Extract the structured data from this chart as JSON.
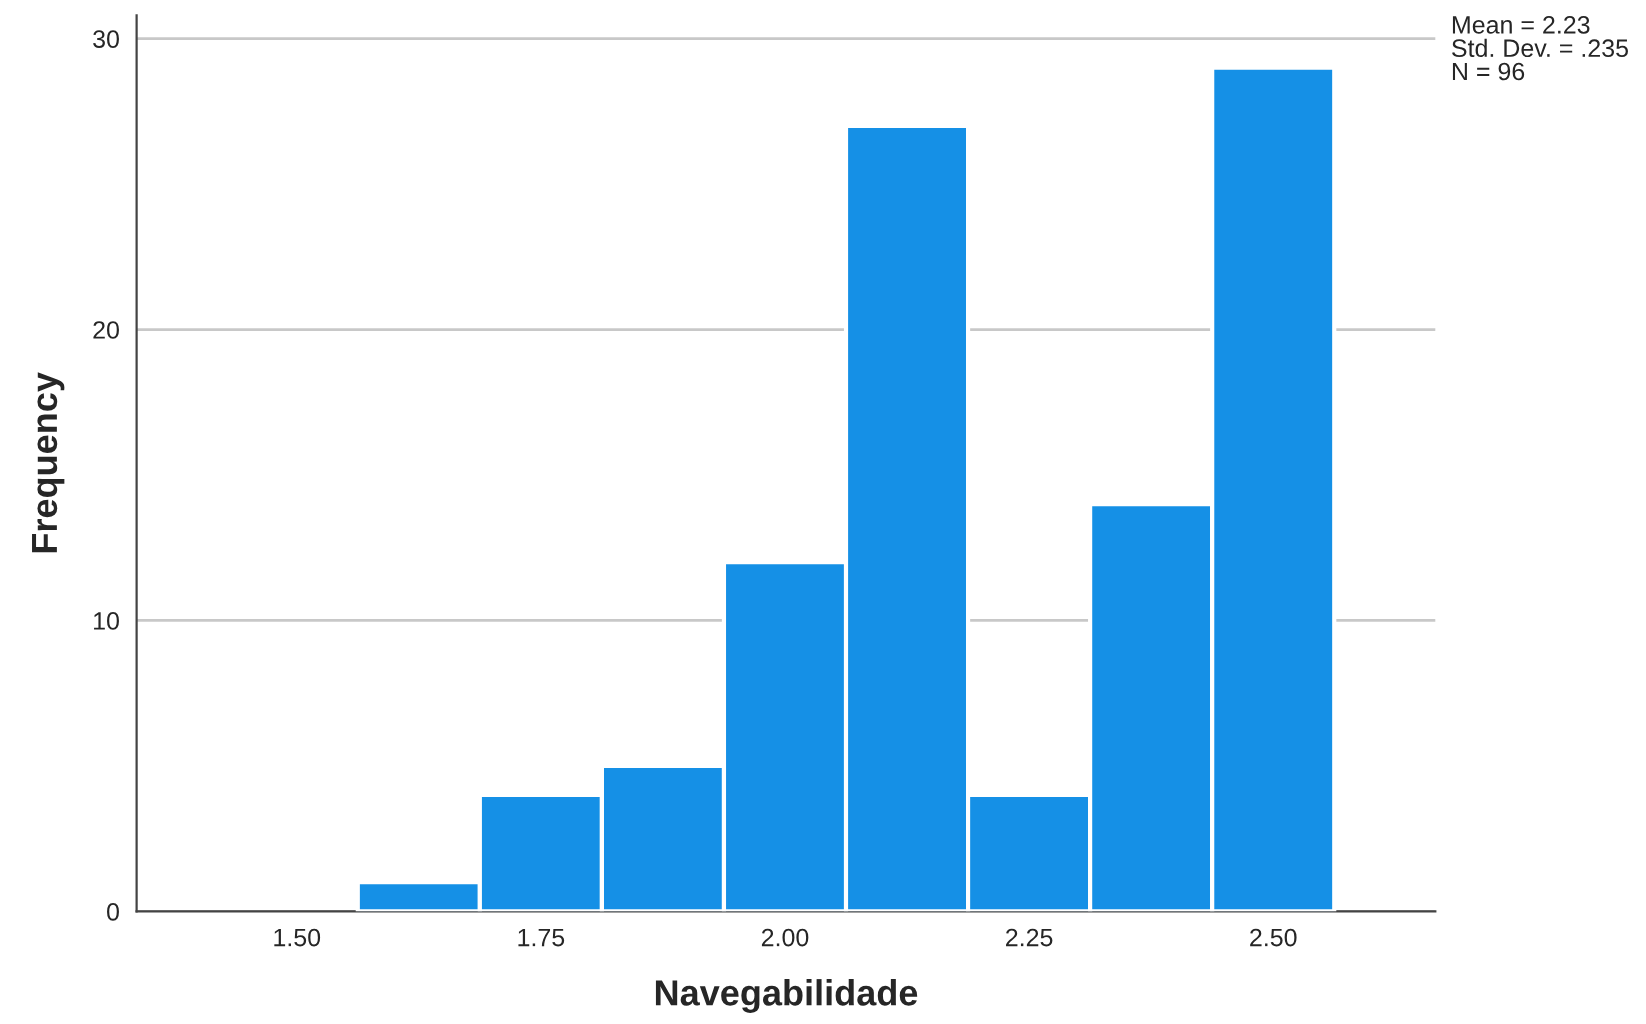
{
  "chart_data": {
    "type": "histogram",
    "xlabel": "Navegabilidade",
    "ylabel": "Frequency",
    "bins": [
      1.5625,
      1.6875,
      1.8125,
      1.9375,
      2.0625,
      2.1875,
      2.3125,
      2.4375,
      2.5625
    ],
    "values": [
      1,
      4,
      5,
      12,
      27,
      4,
      14,
      29
    ],
    "color": "#1590e6",
    "xlim": [
      1.336,
      2.666
    ],
    "xticks": [
      {
        "value": 1.5,
        "label": "1.50"
      },
      {
        "value": 1.75,
        "label": "1.75"
      },
      {
        "value": 2.0,
        "label": "2.00"
      },
      {
        "value": 2.25,
        "label": "2.25"
      },
      {
        "value": 2.5,
        "label": "2.50"
      }
    ],
    "ylim": [
      0,
      30.8
    ],
    "yticks": [
      0,
      10,
      20,
      30
    ],
    "grid": "y",
    "annotations": [
      "Mean = 2.23\nStd. Dev. = .235\nN = 96"
    ]
  }
}
